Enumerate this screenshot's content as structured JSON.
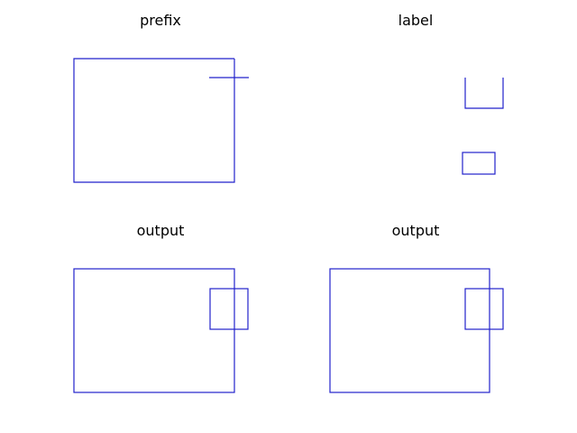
{
  "panels": [
    {
      "title": "prefix"
    },
    {
      "title": "label"
    },
    {
      "title": "output"
    },
    {
      "title": "output"
    }
  ],
  "colors": {
    "stroke": "#2222cc",
    "background": "#ffffff",
    "title_text": "#000000"
  }
}
